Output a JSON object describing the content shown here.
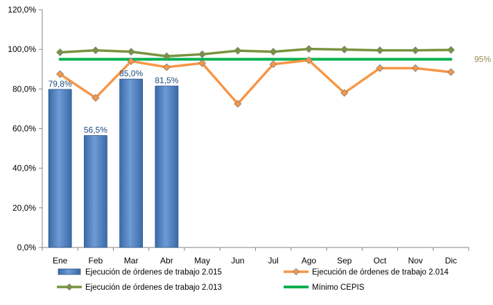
{
  "chart_data": {
    "type": "bar",
    "categories": [
      "Ene",
      "Feb",
      "Mar",
      "Abr",
      "May",
      "Jun",
      "Jul",
      "Ago",
      "Sep",
      "Oct",
      "Nov",
      "Dic"
    ],
    "ylim": [
      0,
      120
    ],
    "y_ticks": [
      "0,0%",
      "20,0%",
      "40,0%",
      "60,0%",
      "80,0%",
      "100,0%",
      "120,0%"
    ],
    "grid": false,
    "legend_position": "bottom",
    "series": [
      {
        "name": "Ejecución de órdenes de trabajo 2.015",
        "kind": "bar",
        "color": "#4f81bd",
        "values": [
          79.8,
          56.5,
          85.0,
          81.5,
          null,
          null,
          null,
          null,
          null,
          null,
          null,
          null
        ],
        "data_labels": [
          "79,8%",
          "56,5%",
          "85,0%",
          "81,5%"
        ]
      },
      {
        "name": "Ejecución de órdenes de trabajo 2.014",
        "kind": "line",
        "marker": "diamond",
        "color": "#f79646",
        "values": [
          87.5,
          75.5,
          94.0,
          91.0,
          93.0,
          72.5,
          92.5,
          94.5,
          78.0,
          90.5,
          90.5,
          88.5
        ]
      },
      {
        "name": "Ejecución de órdenes de trabajo 2.013",
        "kind": "line",
        "marker": "diamond",
        "color": "#77933c",
        "values": [
          98.5,
          99.5,
          98.8,
          96.5,
          97.5,
          99.3,
          98.8,
          100.2,
          99.9,
          99.5,
          99.5,
          99.7
        ]
      },
      {
        "name": "Mínimo CEPIS",
        "kind": "line",
        "marker": "none",
        "color": "#00b050",
        "values": [
          95,
          95,
          95,
          95,
          95,
          95,
          95,
          95,
          95,
          95,
          95,
          95
        ],
        "end_label": "95%",
        "end_label_color": "#948a54"
      }
    ]
  }
}
